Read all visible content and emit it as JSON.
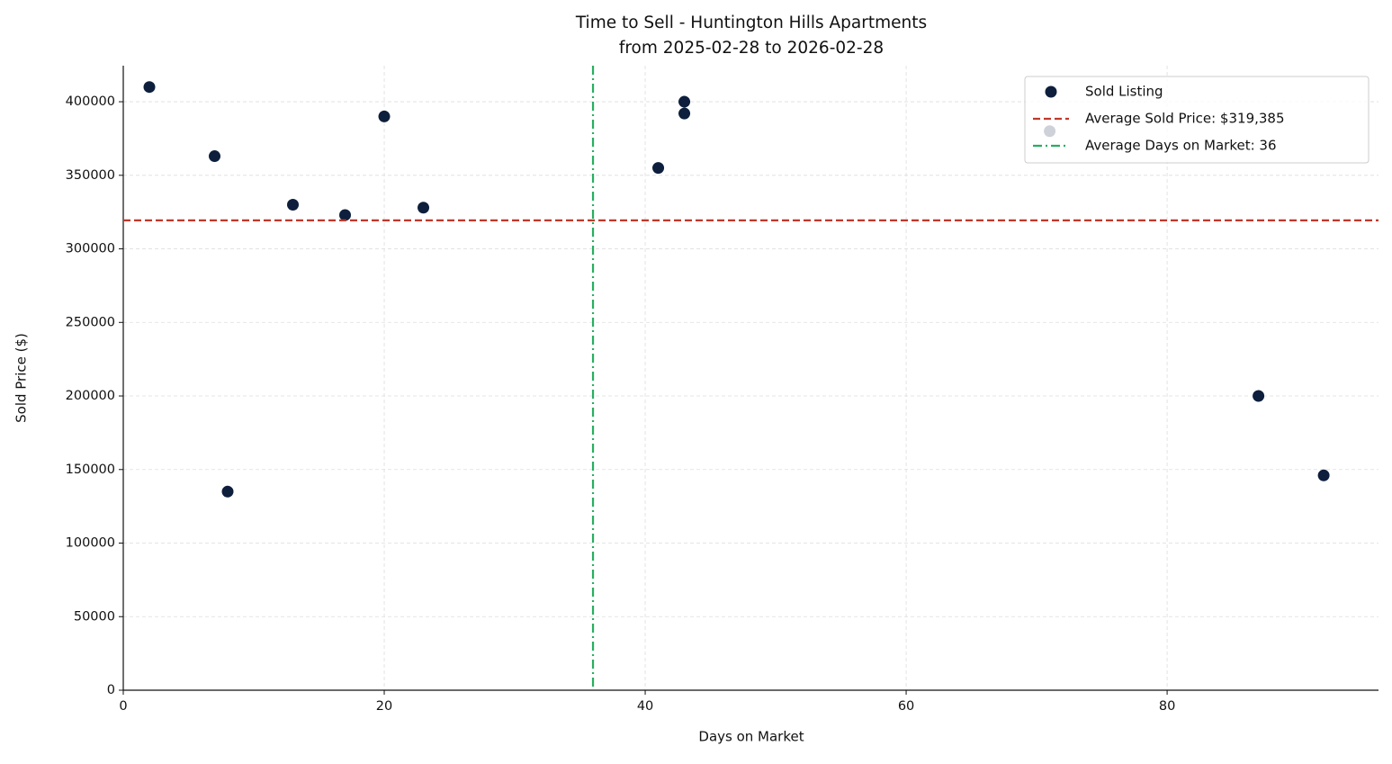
{
  "chart_data": {
    "type": "scatter",
    "title": "Time to Sell - Huntington Hills Apartments",
    "subtitle": "from 2025-02-28 to 2026-02-28",
    "x_label": "Days on Market",
    "y_label": "Sold Price ($)",
    "series": [
      {
        "name": "Sold Listing",
        "color": "#0d1f3c",
        "x": [
          2,
          7,
          8,
          13,
          17,
          20,
          23,
          41,
          43,
          43,
          71,
          87,
          92
        ],
        "values": [
          410000,
          363000,
          135000,
          330000,
          323000,
          390000,
          328000,
          355000,
          400000,
          392000,
          380000,
          200000,
          146000
        ]
      }
    ],
    "hlines": [
      {
        "name": "Average Sold Price: $319,385",
        "value": 319385,
        "color": "#c0392b",
        "style": "dashed"
      }
    ],
    "vlines": [
      {
        "name": "Average Days on Market: 36",
        "value": 36,
        "color": "#27ae60",
        "style": "dashdot"
      }
    ],
    "xlim": [
      0,
      96.2
    ],
    "xticks": [
      0,
      20,
      40,
      60,
      80
    ],
    "ylim": [
      0,
      424500
    ],
    "yticks": [
      0,
      50000,
      100000,
      150000,
      200000,
      250000,
      300000,
      350000,
      400000
    ],
    "grid": true,
    "legend": "upper right"
  }
}
